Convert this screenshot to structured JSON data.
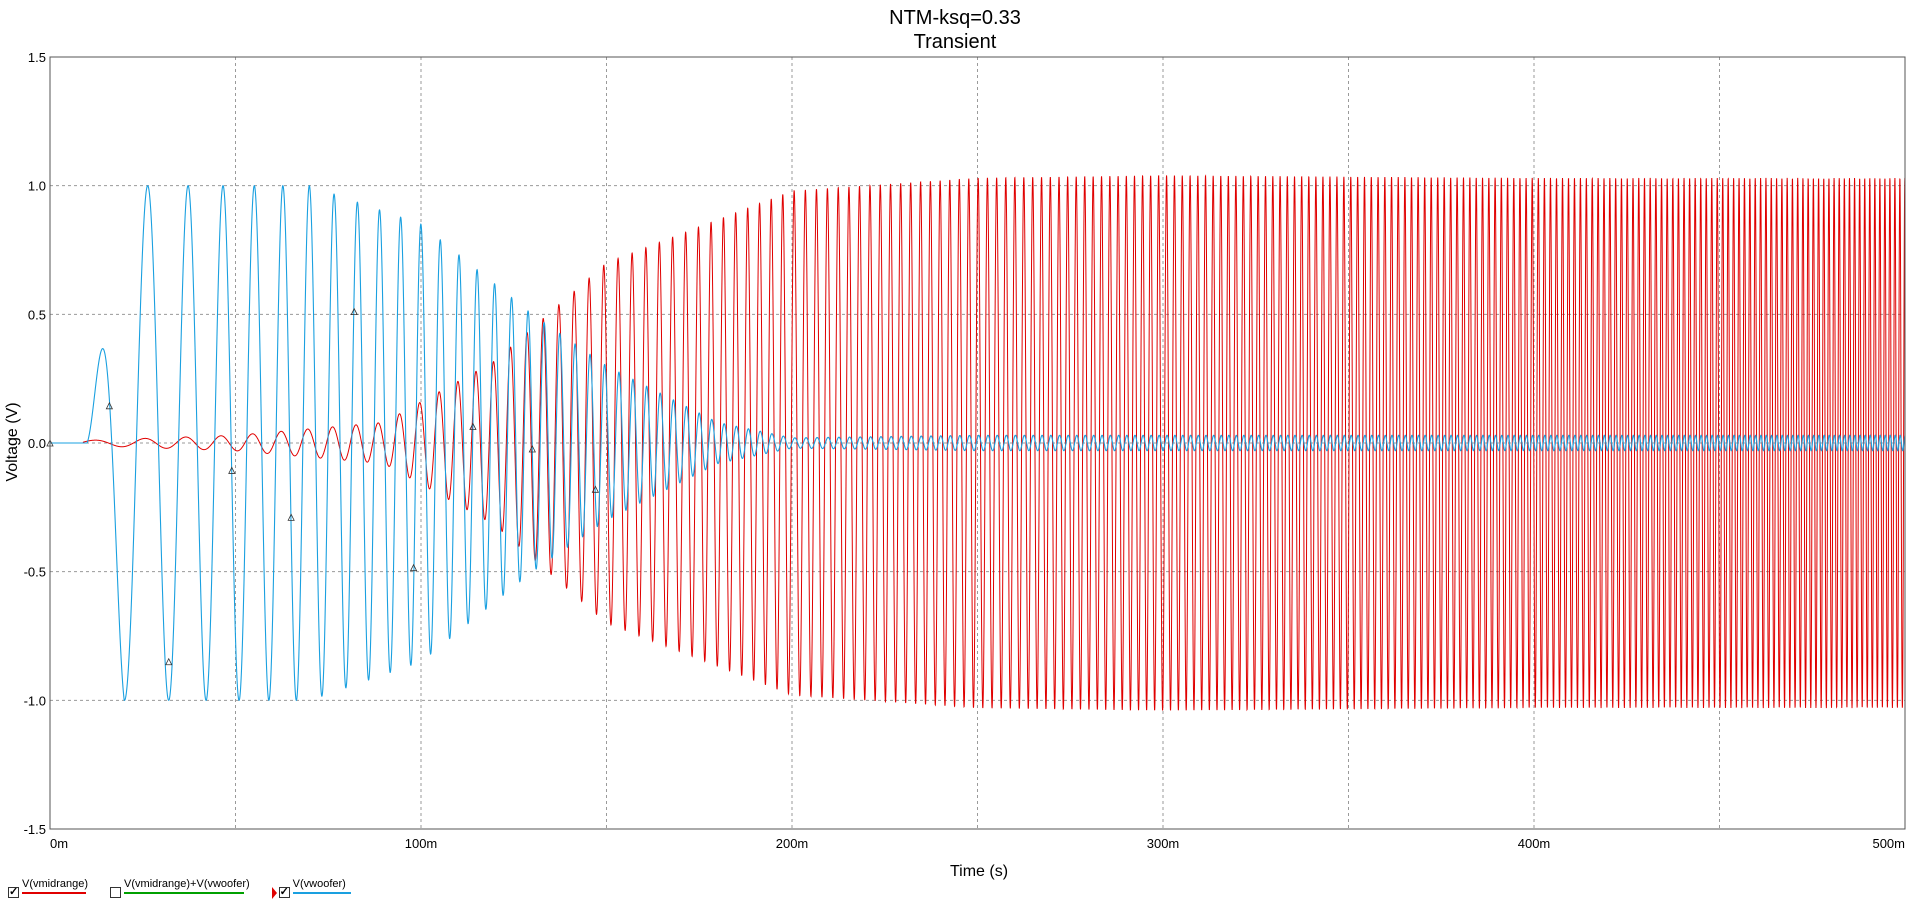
{
  "chart_data": {
    "type": "line",
    "title": "NTM-ksq=0.33",
    "subtitle": "Transient",
    "xlabel": "Time (s)",
    "ylabel": "Voltage (V)",
    "xlim": [
      0,
      0.5
    ],
    "ylim": [
      -1.5,
      1.5
    ],
    "x_ticks": [
      0,
      0.1,
      0.2,
      0.3,
      0.4,
      0.5
    ],
    "x_tick_labels": [
      "0m",
      "100m",
      "200m",
      "300m",
      "400m",
      "500m"
    ],
    "y_ticks": [
      -1.5,
      -1.0,
      -0.5,
      0.0,
      0.5,
      1.0,
      1.5
    ],
    "y_tick_labels": [
      "-1.5",
      "-1.0",
      "-0.5",
      "0.0",
      "0.5",
      "1.0",
      "1.5"
    ],
    "grid": true,
    "legend_placement": "bottom-left",
    "series": [
      {
        "name": "V(vmidrange)",
        "color": "#e00000",
        "checked": true,
        "envelope": {
          "t": [
            0.0,
            0.01,
            0.05,
            0.09,
            0.12,
            0.15,
            0.2,
            0.25,
            0.3,
            0.4,
            0.5
          ],
          "amplitude": [
            0.0,
            0.01,
            0.03,
            0.08,
            0.32,
            0.7,
            0.98,
            1.03,
            1.04,
            1.03,
            1.03
          ]
        }
      },
      {
        "name": "V(vmidrange)+V(vwoofer)",
        "color": "#00a000",
        "checked": false
      },
      {
        "name": "V(vwoofer)",
        "color": "#1aa0e0",
        "checked": true,
        "envelope": {
          "t": [
            0.0,
            0.01,
            0.02,
            0.07,
            0.1,
            0.13,
            0.15,
            0.18,
            0.2,
            0.25,
            0.5
          ],
          "amplitude": [
            0.0,
            0.0,
            1.0,
            1.0,
            0.85,
            0.5,
            0.3,
            0.08,
            0.02,
            0.03,
            0.03
          ]
        }
      }
    ]
  }
}
